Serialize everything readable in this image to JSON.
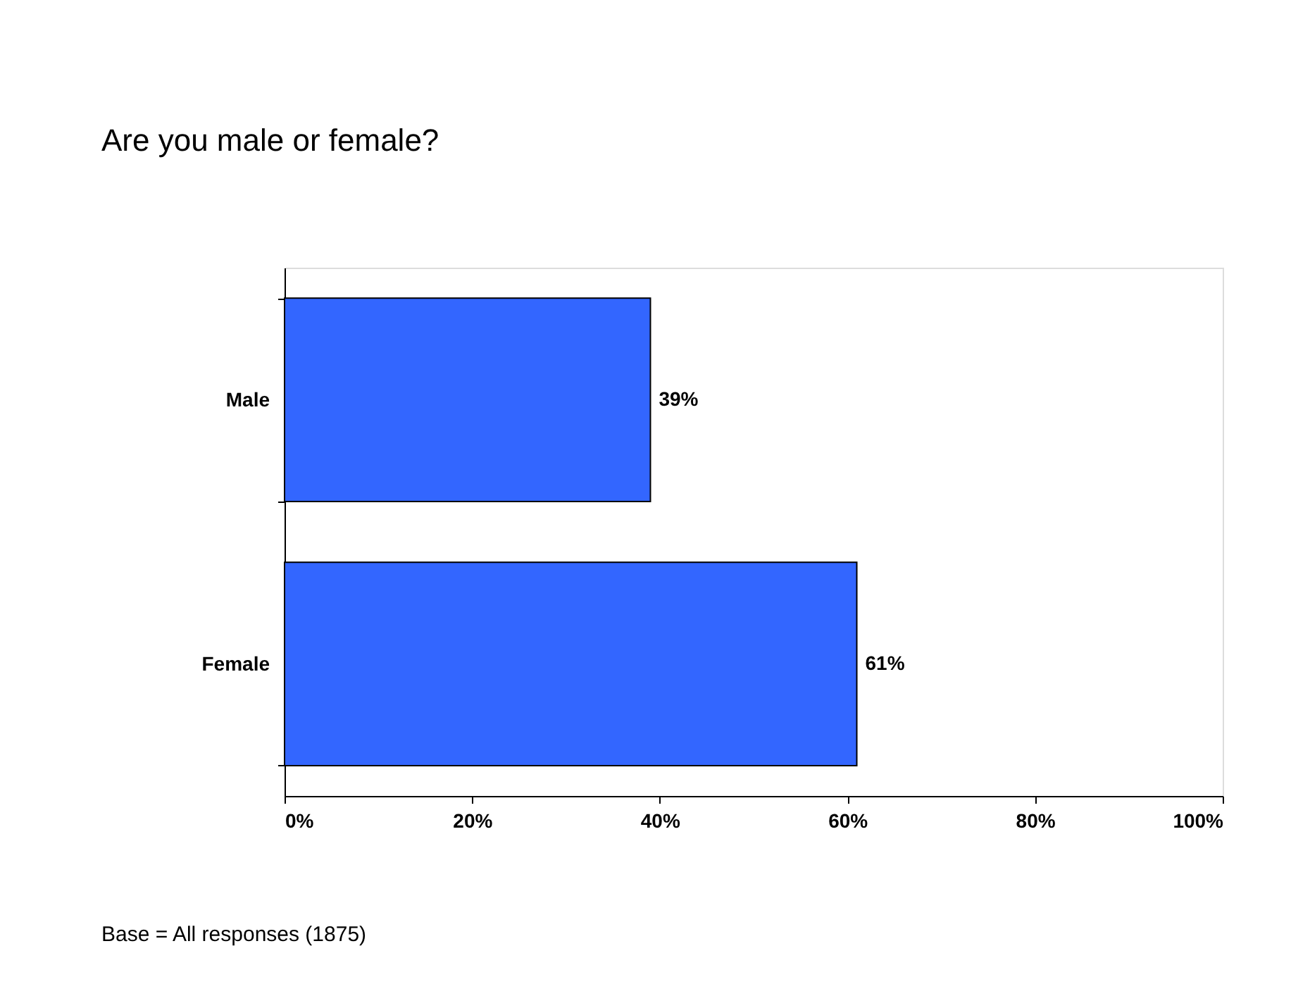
{
  "chart_data": {
    "type": "bar",
    "orientation": "horizontal",
    "title": "Are you male or female?",
    "categories": [
      "Male",
      "Female"
    ],
    "values": [
      39,
      61
    ],
    "color": "#3366ff",
    "value_labels": [
      "39%",
      "61%"
    ],
    "xlim": [
      0,
      100
    ],
    "xticks": [
      {
        "value": 0,
        "label": "0%"
      },
      {
        "value": 20,
        "label": "20%"
      },
      {
        "value": 40,
        "label": "40%"
      },
      {
        "value": 60,
        "label": "60%"
      },
      {
        "value": 80,
        "label": "80%"
      },
      {
        "value": 100,
        "label": "100%"
      }
    ],
    "grid": false,
    "annotations": [
      "Base = All responses (1875)"
    ]
  }
}
